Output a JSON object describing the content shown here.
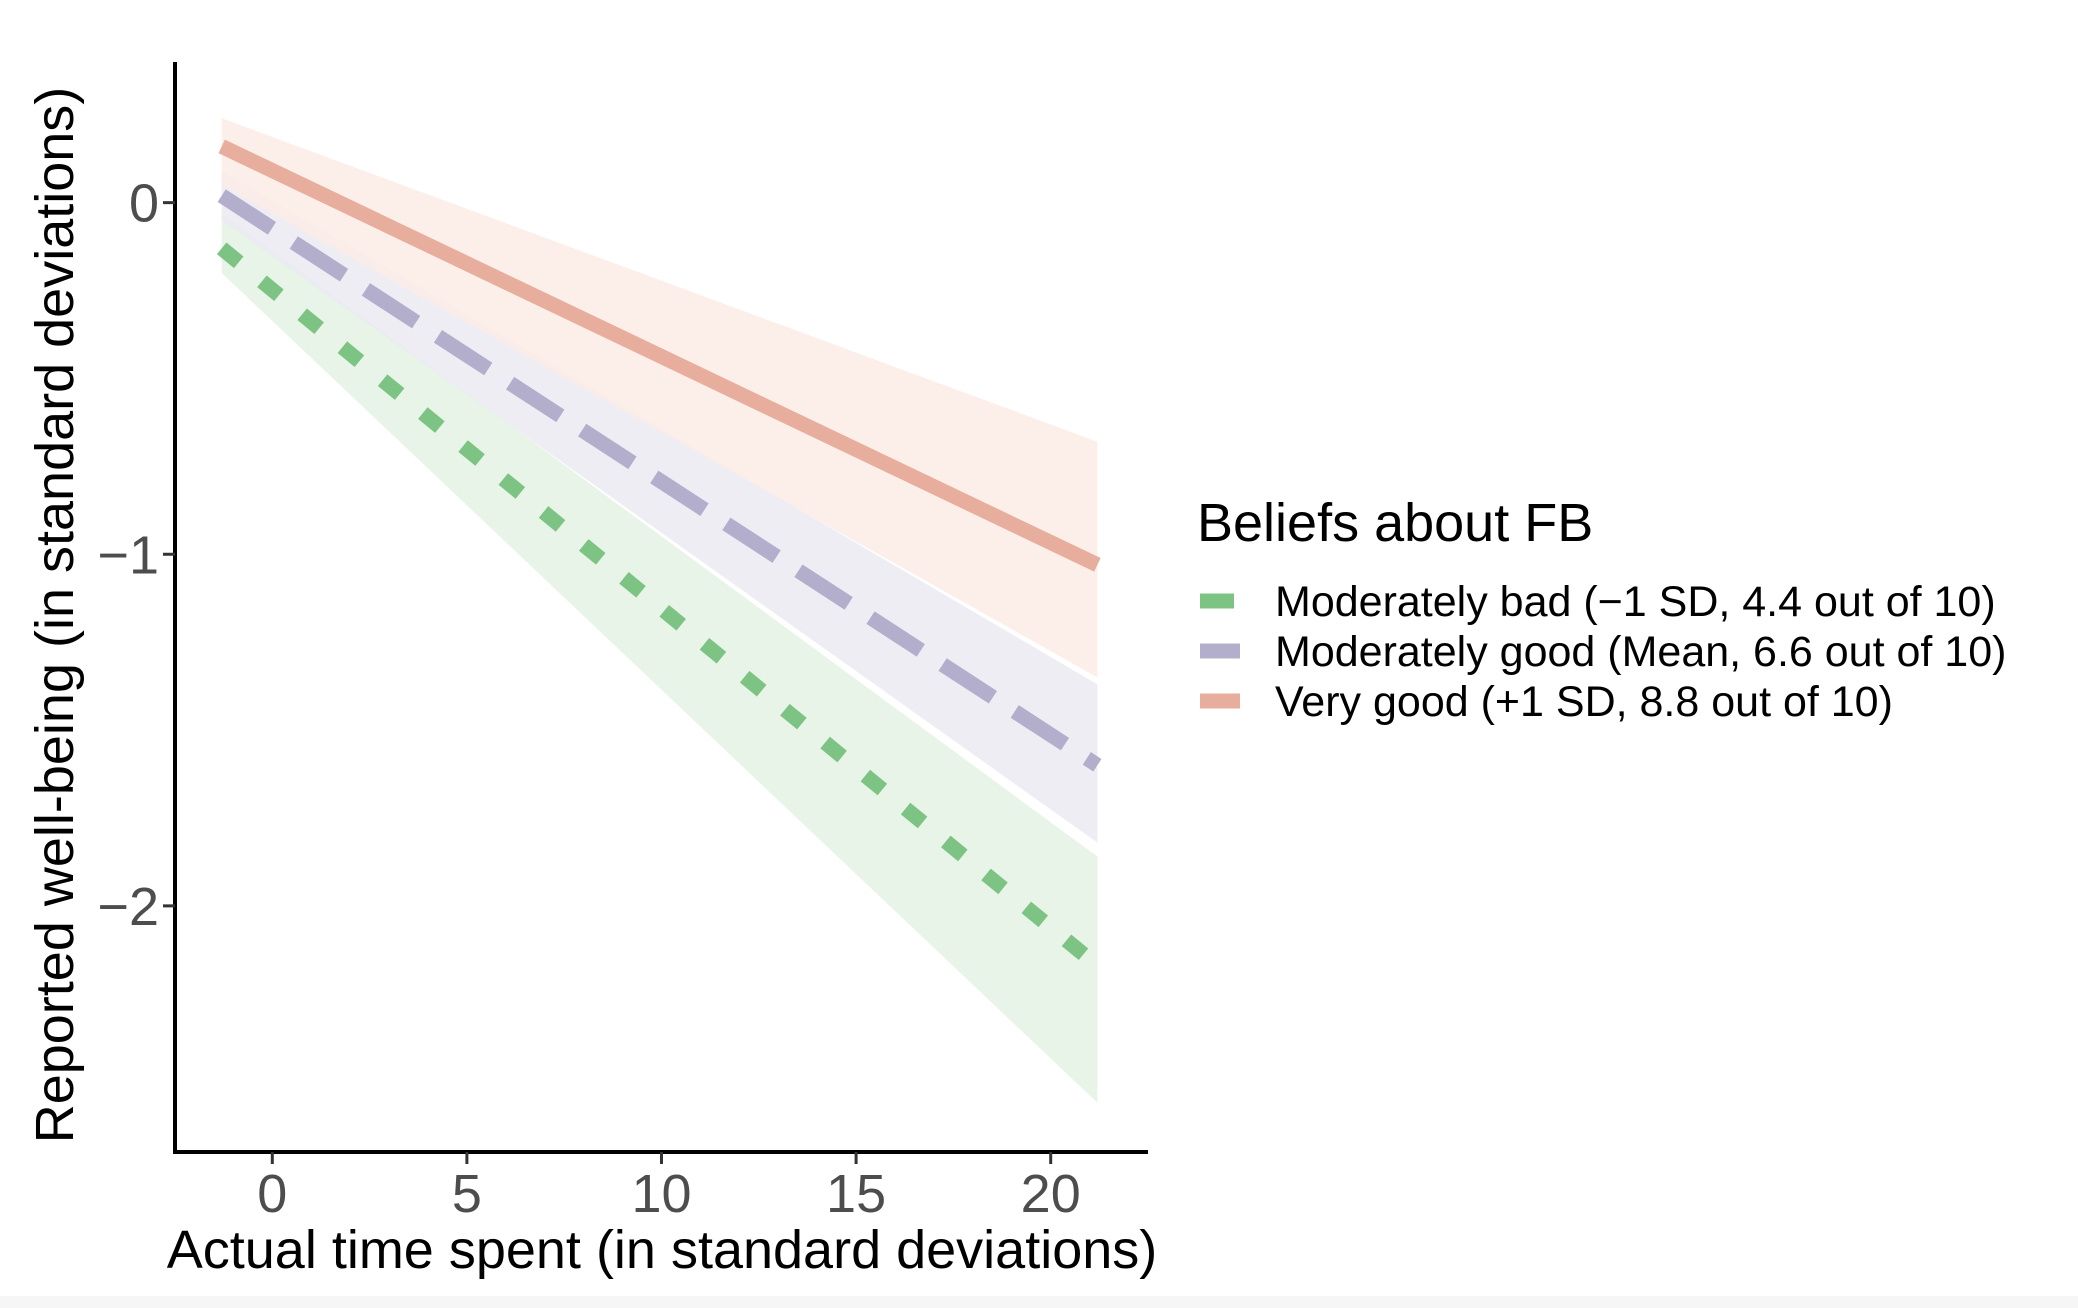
{
  "chart_data": {
    "type": "line",
    "title": "",
    "xlabel": "Actual time spent (in standard deviations)",
    "ylabel": "Reported well-being (in standard deviations)",
    "xlim": [
      -2.5,
      22.5
    ],
    "ylim": [
      -2.7,
      0.4
    ],
    "x_ticks": [
      0,
      5,
      10,
      15,
      20
    ],
    "x_tick_labels": [
      "0",
      "5",
      "10",
      "15",
      "20"
    ],
    "y_ticks": [
      -2,
      -1,
      0
    ],
    "y_tick_labels": [
      "−2",
      "−1",
      "0"
    ],
    "grid": false,
    "legend": {
      "title": "Beliefs about FB",
      "position": "right"
    },
    "series": [
      {
        "name": "Moderately bad (−1 SD, 4.4 out of 10)",
        "color": "#7dc383",
        "band_color": "#e4f2e3",
        "dash": "short",
        "x": [
          -1.3,
          21.2
        ],
        "values": [
          -0.13,
          -2.17
        ],
        "ci_lower": [
          -0.2,
          -2.56
        ],
        "ci_upper": [
          -0.03,
          -1.86
        ]
      },
      {
        "name": "Moderately good (Mean, 6.6 out of 10)",
        "color": "#b3aecb",
        "band_color": "#ebeaf2",
        "dash": "long",
        "x": [
          -1.3,
          21.2
        ],
        "values": [
          0.02,
          -1.6
        ],
        "ci_lower": [
          -0.05,
          -1.82
        ],
        "ci_upper": [
          0.09,
          -1.37
        ]
      },
      {
        "name": "Very good (+1 SD, 8.8 out of 10)",
        "color": "#e8ae9d",
        "band_color": "#fbebe5",
        "dash": "solid",
        "x": [
          -1.3,
          21.2
        ],
        "values": [
          0.16,
          -1.03
        ],
        "ci_lower": [
          0.05,
          -1.35
        ],
        "ci_upper": [
          0.24,
          -0.68
        ]
      }
    ]
  }
}
